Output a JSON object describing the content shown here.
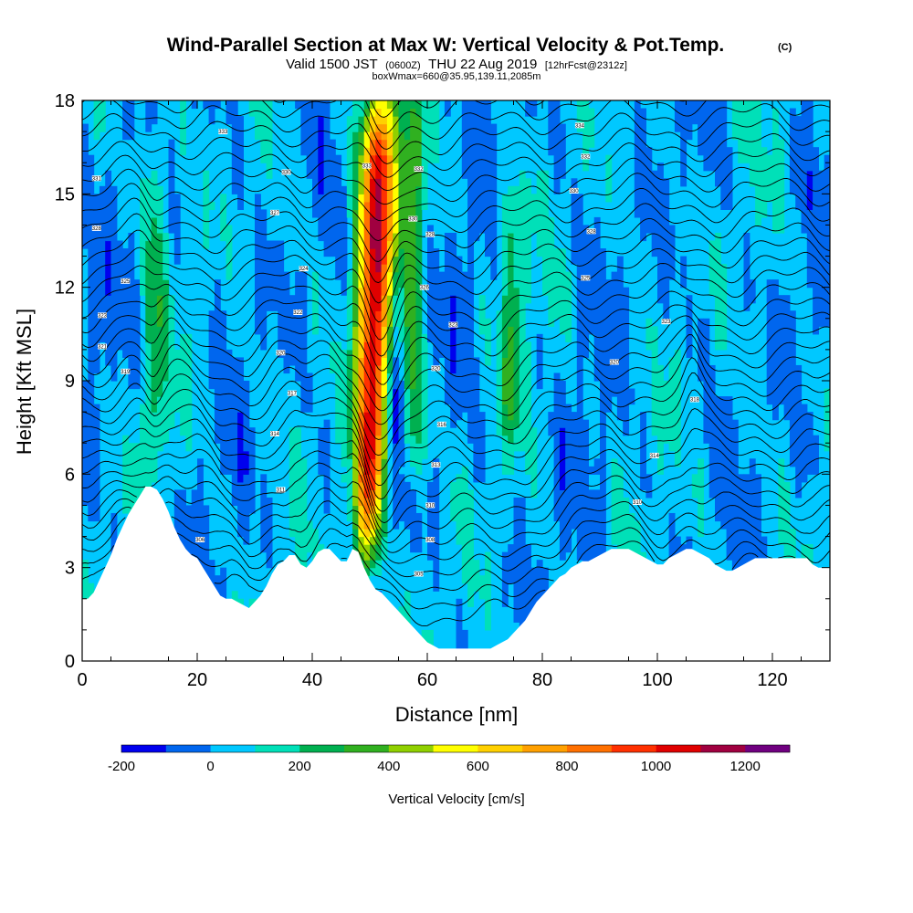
{
  "chart_data": {
    "type": "heatmap",
    "title": "Wind-Parallel Section at Max W: Vertical Velocity & Pot.Temp.",
    "title_mark": "(C)",
    "subtitle": {
      "valid": "Valid 1500 JST",
      "utc": "(0600Z)",
      "date": "THU 22 Aug 2019",
      "fcst": "[12hrFcst@2312z]"
    },
    "box_note": "boxWmax=660@35.95,139.11,2085m",
    "xlabel": "Distance [nm]",
    "ylabel": "Height [Kft MSL]",
    "xlim": [
      0,
      130
    ],
    "ylim": [
      0,
      18
    ],
    "x_ticks": [
      0,
      20,
      40,
      60,
      80,
      100,
      120
    ],
    "y_ticks": [
      0,
      3,
      6,
      9,
      12,
      15,
      18
    ],
    "colorbar": {
      "label": "Vertical Velocity [cm/s]",
      "tick_values": [
        -200,
        0,
        200,
        400,
        600,
        800,
        1000,
        1200
      ],
      "bins": [
        -200,
        -100,
        0,
        100,
        200,
        300,
        400,
        500,
        600,
        700,
        800,
        900,
        1000,
        1100,
        1200,
        1300
      ],
      "colors": [
        "#0000ee",
        "#0066ee",
        "#00c8ff",
        "#00e0b8",
        "#00b050",
        "#30b020",
        "#90d000",
        "#ffff00",
        "#ffd000",
        "#ffa000",
        "#ff7000",
        "#ff3000",
        "#e00000",
        "#a00040",
        "#700080"
      ]
    },
    "terrain": {
      "x": [
        0,
        1,
        2,
        3,
        4,
        5,
        6,
        7,
        8,
        9,
        10,
        11,
        12,
        13,
        14,
        15,
        16,
        17,
        18,
        19,
        20,
        21,
        22,
        23,
        24,
        25,
        26,
        27,
        28,
        29,
        30,
        31,
        32,
        33,
        34,
        35,
        36,
        37,
        38,
        39,
        40,
        41,
        42,
        43,
        44,
        45,
        46,
        47,
        48,
        49,
        50,
        51,
        52,
        53,
        54,
        55,
        56,
        57,
        58,
        59,
        60,
        61,
        62,
        63,
        64,
        65,
        66,
        67,
        68,
        69,
        70,
        71,
        72,
        73,
        74,
        75,
        76,
        77,
        78,
        79,
        80,
        81,
        82,
        83,
        84,
        85,
        86,
        87,
        88,
        89,
        90,
        91,
        92,
        93,
        94,
        95,
        96,
        97,
        98,
        99,
        100,
        101,
        102,
        103,
        104,
        105,
        106,
        107,
        108,
        109,
        110,
        111,
        112,
        113,
        114,
        115,
        116,
        117,
        118,
        119,
        120,
        121,
        122,
        123,
        124,
        125,
        126,
        127,
        128,
        129,
        130
      ],
      "height_kft": [
        2.0,
        2.0,
        2.2,
        2.6,
        3.0,
        3.4,
        3.9,
        4.3,
        4.7,
        5.0,
        5.3,
        5.6,
        5.6,
        5.5,
        5.2,
        4.8,
        4.3,
        3.9,
        3.6,
        3.4,
        3.3,
        3.0,
        2.7,
        2.4,
        2.1,
        2.0,
        2.0,
        1.9,
        1.8,
        1.7,
        1.9,
        2.1,
        2.4,
        2.8,
        3.1,
        3.2,
        3.4,
        3.4,
        3.1,
        3.0,
        3.2,
        3.5,
        3.6,
        3.6,
        3.4,
        3.2,
        3.2,
        3.6,
        3.5,
        3.0,
        2.6,
        2.3,
        2.2,
        2.0,
        1.8,
        1.6,
        1.4,
        1.2,
        1.0,
        0.8,
        0.6,
        0.5,
        0.4,
        0.4,
        0.4,
        0.4,
        0.4,
        0.4,
        0.4,
        0.4,
        0.4,
        0.4,
        0.5,
        0.6,
        0.7,
        0.9,
        1.1,
        1.3,
        1.6,
        1.9,
        2.1,
        2.3,
        2.5,
        2.7,
        2.8,
        3.0,
        3.1,
        3.2,
        3.2,
        3.3,
        3.4,
        3.5,
        3.6,
        3.6,
        3.6,
        3.6,
        3.5,
        3.4,
        3.3,
        3.2,
        3.1,
        3.1,
        3.3,
        3.4,
        3.5,
        3.6,
        3.6,
        3.5,
        3.4,
        3.3,
        3.1,
        3.0,
        2.9,
        2.9,
        3.0,
        3.1,
        3.2,
        3.3,
        3.3,
        3.3,
        3.3,
        3.3,
        3.3,
        3.3,
        3.3,
        3.3,
        3.3,
        3.1,
        3.0,
        3.0,
        3.0
      ]
    },
    "vertical_velocity_features": [
      {
        "x_center": 50.5,
        "base_kft": 3.5,
        "top_kft": 18,
        "peak_cm_s": 1050
      },
      {
        "x_center": 54.8,
        "base_kft": 7,
        "top_kft": 13,
        "peak_cm_s": -220
      },
      {
        "x_center": 57.5,
        "base_kft": 6,
        "top_kft": 17.5,
        "peak_cm_s": 300
      },
      {
        "x_center": 74.5,
        "base_kft": 7.5,
        "top_kft": 15,
        "peak_cm_s": 250
      },
      {
        "x_center": 12.5,
        "base_kft": 6,
        "top_kft": 17,
        "peak_cm_s": 210
      }
    ],
    "isentropes": {
      "theta_K": [
        300,
        301,
        302,
        303,
        304,
        305,
        306,
        307,
        308,
        309,
        310,
        311,
        312,
        313,
        314,
        315,
        316,
        317,
        318,
        319,
        320,
        321,
        322,
        323,
        324,
        325,
        326,
        327,
        328,
        329,
        330,
        331,
        332,
        333,
        334,
        335,
        336
      ],
      "base_height_kft": [
        1.2,
        1.7,
        2.2,
        2.7,
        3.2,
        3.7,
        4.2,
        4.7,
        5.2,
        5.7,
        6.2,
        6.7,
        7.2,
        7.7,
        8.2,
        8.7,
        9.2,
        9.7,
        10.2,
        10.7,
        11.2,
        11.7,
        12.2,
        12.7,
        13.2,
        13.7,
        14.2,
        14.7,
        15.2,
        15.7,
        16.2,
        16.7,
        17.2,
        17.7,
        18.2,
        18.7,
        19.2
      ]
    },
    "isentrope_labels": [
      {
        "x": 2.5,
        "y": 15.5,
        "text": "331"
      },
      {
        "x": 2.5,
        "y": 13.9,
        "text": "328"
      },
      {
        "x": 7.5,
        "y": 12.2,
        "text": "325"
      },
      {
        "x": 3.5,
        "y": 11.1,
        "text": "323"
      },
      {
        "x": 3.5,
        "y": 10.1,
        "text": "321"
      },
      {
        "x": 7.5,
        "y": 9.3,
        "text": "319"
      },
      {
        "x": 24.5,
        "y": 17.0,
        "text": "333"
      },
      {
        "x": 35.5,
        "y": 15.7,
        "text": "330"
      },
      {
        "x": 33.5,
        "y": 14.4,
        "text": "327"
      },
      {
        "x": 38.5,
        "y": 12.6,
        "text": "324"
      },
      {
        "x": 37.5,
        "y": 11.2,
        "text": "322"
      },
      {
        "x": 34.5,
        "y": 9.9,
        "text": "320"
      },
      {
        "x": 36.5,
        "y": 8.6,
        "text": "317"
      },
      {
        "x": 33.5,
        "y": 7.3,
        "text": "314"
      },
      {
        "x": 34.5,
        "y": 5.5,
        "text": "311"
      },
      {
        "x": 20.5,
        "y": 3.9,
        "text": "306"
      },
      {
        "x": 49.5,
        "y": 15.9,
        "text": "333"
      },
      {
        "x": 58.5,
        "y": 15.8,
        "text": "332"
      },
      {
        "x": 57.5,
        "y": 14.2,
        "text": "330"
      },
      {
        "x": 60.5,
        "y": 13.7,
        "text": "328"
      },
      {
        "x": 59.5,
        "y": 12.0,
        "text": "326"
      },
      {
        "x": 64.5,
        "y": 10.8,
        "text": "323"
      },
      {
        "x": 61.5,
        "y": 9.4,
        "text": "320"
      },
      {
        "x": 62.5,
        "y": 7.6,
        "text": "316"
      },
      {
        "x": 61.5,
        "y": 6.3,
        "text": "313"
      },
      {
        "x": 60.5,
        "y": 5.0,
        "text": "310"
      },
      {
        "x": 60.5,
        "y": 3.9,
        "text": "308"
      },
      {
        "x": 58.5,
        "y": 2.8,
        "text": "305"
      },
      {
        "x": 86.5,
        "y": 17.2,
        "text": "334"
      },
      {
        "x": 87.5,
        "y": 16.2,
        "text": "332"
      },
      {
        "x": 85.5,
        "y": 15.1,
        "text": "330"
      },
      {
        "x": 88.5,
        "y": 13.8,
        "text": "328"
      },
      {
        "x": 87.5,
        "y": 12.3,
        "text": "325"
      },
      {
        "x": 101.5,
        "y": 10.9,
        "text": "323"
      },
      {
        "x": 92.5,
        "y": 9.6,
        "text": "320"
      },
      {
        "x": 106.5,
        "y": 8.4,
        "text": "318"
      },
      {
        "x": 99.5,
        "y": 6.6,
        "text": "314"
      },
      {
        "x": 96.5,
        "y": 5.1,
        "text": "310"
      }
    ]
  }
}
